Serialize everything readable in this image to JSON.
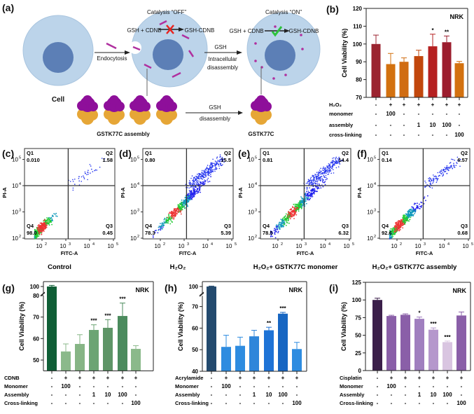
{
  "panel_labels": {
    "a": "(a)",
    "b": "(b)",
    "c": "(c)",
    "d": "(d)",
    "e": "(e)",
    "f": "(f)",
    "g": "(g)",
    "h": "(h)",
    "i": "(i)"
  },
  "schematic": {
    "cell_label": "Cell",
    "endocytosis": "Endocytosis",
    "catalysis_off": "Catalysis “OFF”",
    "catalysis_on": "Catalysis “ON”",
    "reactants": "GSH + CDNB",
    "product": "GSH-CDNB",
    "gsh": "GSH",
    "intracellular": "Intracellular",
    "disassembly": "disassembly",
    "assembly_label": "GSTK77C assembly",
    "monomer_label": "GSTK77C",
    "colors": {
      "cell": "#bcd4ea",
      "nucleus": "#5c7fb6",
      "rod": "#b0309f",
      "protein_top": "#8e0f9a",
      "protein_bottom": "#e6a636",
      "cross": "#e8231f",
      "check": "#2ec23c"
    }
  },
  "chart_data": [
    {
      "id": "b",
      "type": "bar",
      "tag": "NRK",
      "ylabel": "Cell Viability (%)",
      "ylim": [
        70,
        120
      ],
      "yticks": [
        70,
        80,
        90,
        100,
        110,
        120
      ],
      "values": [
        100,
        88.7,
        90,
        93.2,
        98.7,
        101,
        89.2
      ],
      "errors": [
        5,
        6,
        2.2,
        3.3,
        6.8,
        3.5,
        1
      ],
      "significance": [
        "",
        "",
        "",
        "",
        "*",
        "**",
        ""
      ],
      "colors": [
        "#9b2430",
        "#d3710f",
        "#d06c12",
        "#c2470c",
        "#b52020",
        "#9c1d2e",
        "#d3710f"
      ],
      "rows": [
        {
          "label": "H₂O₂",
          "cells": [
            "-",
            "+",
            "+",
            "+",
            "+",
            "+",
            "+"
          ]
        },
        {
          "label": "monomer",
          "cells": [
            "-",
            "100",
            "-",
            "-",
            "-",
            "-",
            "-"
          ]
        },
        {
          "label": "assembly",
          "cells": [
            "-",
            "-",
            "-",
            "1",
            "10",
            "100",
            "-"
          ]
        },
        {
          "label": "cross-linking",
          "cells": [
            "-",
            "-",
            "-",
            "-",
            "-",
            "-",
            "100"
          ]
        }
      ]
    },
    {
      "id": "g",
      "type": "bar",
      "tag": "NRK",
      "ylabel": "Cell Viability (%)",
      "ylim": [
        45,
        102
      ],
      "axis_break": [
        80,
        95
      ],
      "yticks": [
        50,
        60,
        70,
        80,
        100
      ],
      "values": [
        100,
        54,
        57.5,
        64,
        65,
        70.5,
        55.2
      ],
      "errors": [
        0.8,
        3.5,
        4.3,
        2.4,
        3.8,
        6,
        1.5
      ],
      "significance": [
        "",
        "",
        "",
        "***",
        "***",
        "***",
        ""
      ],
      "colors": [
        "#0f5e36",
        "#8bb98b",
        "#86b585",
        "#6ca474",
        "#5e9567",
        "#4b8b5d",
        "#8bb98b"
      ],
      "rows": [
        {
          "label": "CDNB",
          "cells": [
            "-",
            "+",
            "+",
            "+",
            "+",
            "+",
            "+"
          ]
        },
        {
          "label": "Monomer",
          "cells": [
            "-",
            "100",
            "-",
            "-",
            "-",
            "-",
            "-"
          ]
        },
        {
          "label": "Assembly",
          "cells": [
            "-",
            "-",
            "-",
            "1",
            "10",
            "100",
            "-"
          ]
        },
        {
          "label": "Cross-linking",
          "cells": [
            "-",
            "-",
            "-",
            "-",
            "-",
            "-",
            "100"
          ]
        }
      ]
    },
    {
      "id": "h",
      "type": "bar",
      "tag": "NRK",
      "ylabel": "Cell Viability (%)",
      "ylim": [
        40,
        102
      ],
      "axis_break": [
        75,
        95
      ],
      "yticks": [
        40,
        50,
        60,
        70,
        100
      ],
      "values": [
        100,
        51.3,
        51.8,
        56.2,
        59,
        66.7,
        50.3
      ],
      "errors": [
        0.3,
        5.4,
        4,
        2.8,
        1.4,
        0.6,
        3.1
      ],
      "significance": [
        "",
        "",
        "",
        "",
        "**",
        "***",
        ""
      ],
      "colors": [
        "#234a6e",
        "#2e8ce0",
        "#2e8ce0",
        "#2f86da",
        "#1e73d6",
        "#1766c2",
        "#2e8ce0"
      ],
      "rows": [
        {
          "label": "Acrylamide",
          "cells": [
            "-",
            "+",
            "+",
            "+",
            "+",
            "+",
            "+"
          ]
        },
        {
          "label": "Monomer",
          "cells": [
            "-",
            "100",
            "-",
            "-",
            "-",
            "-",
            "-"
          ]
        },
        {
          "label": "Assembly",
          "cells": [
            "-",
            "-",
            "-",
            "1",
            "10",
            "100",
            "-"
          ]
        },
        {
          "label": "Cross-linking",
          "cells": [
            "-",
            "-",
            "-",
            "-",
            "-",
            "-",
            "100"
          ]
        }
      ]
    },
    {
      "id": "i",
      "type": "bar",
      "tag": "NRK",
      "ylabel": "Cell Viability (%)",
      "ylim": [
        0,
        125
      ],
      "yticks": [
        0,
        25,
        50,
        75,
        100,
        125
      ],
      "values": [
        100,
        77.3,
        79,
        73.3,
        57.9,
        40.3,
        78
      ],
      "errors": [
        2.5,
        1,
        1.3,
        2.5,
        2.5,
        1.5,
        5
      ],
      "significance": [
        "",
        "",
        "",
        "*",
        "***",
        "***",
        ""
      ],
      "colors": [
        "#3b1f4a",
        "#8a5fa8",
        "#8a5fa8",
        "#a07fbf",
        "#b597cc",
        "#d9c5e1",
        "#8a5fa8"
      ],
      "rows": [
        {
          "label": "Cisplatin",
          "cells": [
            "-",
            "+",
            "+",
            "+",
            "+",
            "+",
            "+"
          ]
        },
        {
          "label": "Monomer",
          "cells": [
            "-",
            "100",
            "-",
            "-",
            "-",
            "-",
            "-"
          ]
        },
        {
          "label": "Assembly",
          "cells": [
            "-",
            "-",
            "-",
            "1",
            "10",
            "100",
            "-"
          ]
        },
        {
          "label": "Cross-linking",
          "cells": [
            "-",
            "-",
            "-",
            "-",
            "-",
            "-",
            "100"
          ]
        }
      ]
    },
    {
      "id": "flow",
      "type": "scatter",
      "xlabel": "FITC-A",
      "ylabel": "PI-A",
      "xticks": [
        "10",
        "10",
        "10",
        "10"
      ],
      "xtick_exp": [
        "2",
        "3",
        "4",
        "5"
      ],
      "yticks": [
        "10",
        "10",
        "10",
        "10"
      ],
      "ytick_exp": [
        "2",
        "3",
        "4",
        "5"
      ],
      "panels": [
        {
          "title": "Control",
          "Q1": "0.010",
          "Q2": "1.58",
          "Q3": "0.45",
          "Q4": "98.0"
        },
        {
          "title": "H₂O₂",
          "Q1": "0.80",
          "Q2": "15.5",
          "Q3": "5.39",
          "Q4": "78.3"
        },
        {
          "title": "H₂O₂+ GSTK77C monomer",
          "Q1": "0.81",
          "Q2": "14.4",
          "Q3": "6.32",
          "Q4": "78.5"
        },
        {
          "title": "H₂O₂+ GSTK77C assembly",
          "Q1": "0.14",
          "Q2": "6.57",
          "Q3": "0.68",
          "Q4": "92.6"
        }
      ],
      "quadrant_names": [
        "Q1",
        "Q2",
        "Q3",
        "Q4"
      ]
    }
  ]
}
